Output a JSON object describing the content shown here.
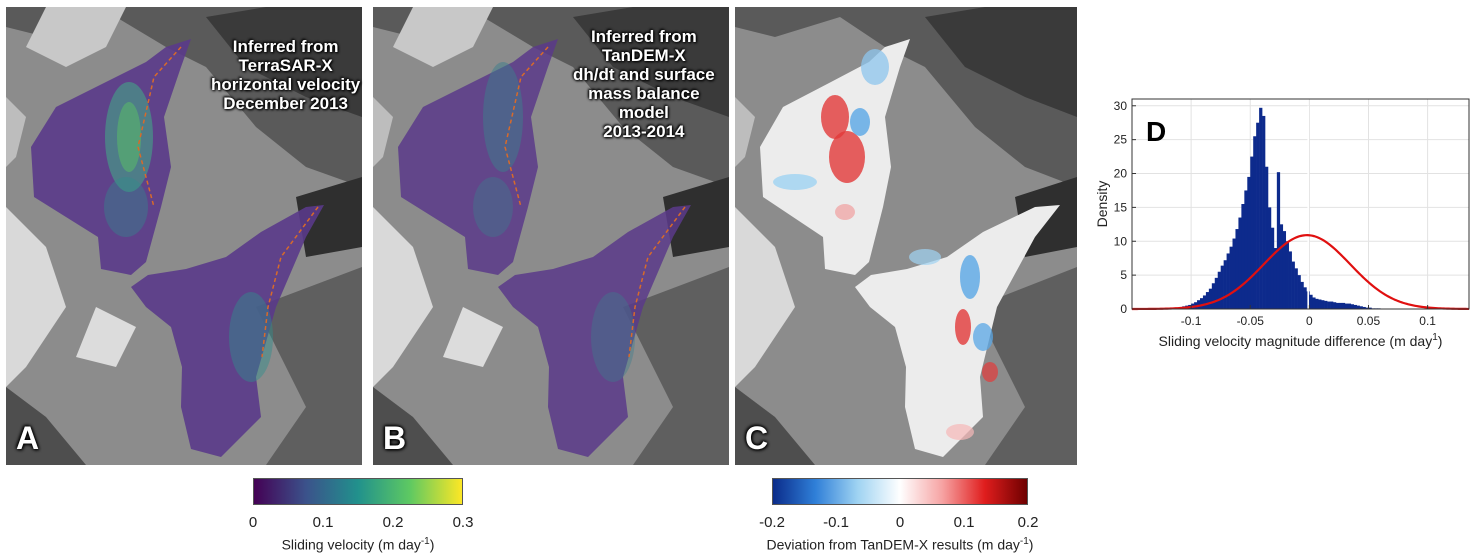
{
  "panels": {
    "a": {
      "letter": "A",
      "title_lines": [
        "Inferred from",
        "TerraSAR-X",
        "horizontal velocity",
        "December 2013"
      ]
    },
    "b": {
      "letter": "B",
      "title_lines": [
        "Inferred from",
        "TanDEM-X",
        "dh/dt and surface",
        "mass balance",
        "model",
        "2013-2014"
      ]
    },
    "c": {
      "letter": "C"
    }
  },
  "colorbars": {
    "velocity": {
      "ticks": [
        "0",
        "0.1",
        "0.2",
        "0.3"
      ],
      "label": "Sliding velocity (m day",
      "label_sup": "-1",
      "label_end": ")",
      "colors": [
        "#440154",
        "#3b528b",
        "#21918c",
        "#5ec962",
        "#fde725"
      ]
    },
    "deviation": {
      "ticks": [
        "-0.2",
        "-0.1",
        "0",
        "0.1",
        "0.2"
      ],
      "label": "Deviation from TanDEM-X results (m day",
      "label_sup": "-1",
      "label_end": ")",
      "colors": [
        "#0b2c8a",
        "#2f7fd8",
        "#9fd3f2",
        "#ffffff",
        "#f6a3a3",
        "#e01d1d",
        "#6e0000"
      ]
    }
  },
  "chart_data": {
    "type": "histogram",
    "panel_letter": "D",
    "xlabel": "Sliding velocity magnitude difference (m day",
    "xlabel_sup": "1",
    "xlabel_end": ")",
    "ylabel": "Density",
    "xlim": [
      -0.15,
      0.135
    ],
    "ylim": [
      0,
      31
    ],
    "xticks": [
      -0.1,
      -0.05,
      0,
      0.05,
      0.1
    ],
    "xtick_labels": [
      "-0.1",
      "-0.05",
      "0",
      "0.05",
      "0.1"
    ],
    "yticks": [
      0,
      5,
      10,
      15,
      20,
      25,
      30
    ],
    "ytick_labels": [
      "0",
      "5",
      "10",
      "15",
      "20",
      "25",
      "30"
    ],
    "grid": true,
    "bar_color": "#0d2a8c",
    "fit_color": "#e01010",
    "bins": {
      "start": -0.15,
      "width": 0.0025,
      "densities": [
        0,
        0,
        0,
        0,
        0,
        0,
        0,
        0,
        0,
        0,
        0,
        0,
        0.1,
        0.1,
        0.2,
        0.2,
        0.3,
        0.4,
        0.5,
        0.6,
        0.8,
        1.0,
        1.3,
        1.6,
        2.0,
        2.5,
        3.0,
        3.8,
        4.6,
        5.5,
        6.4,
        7.2,
        8.2,
        9.2,
        10.4,
        11.8,
        13.5,
        15.5,
        17.5,
        19.5,
        22.5,
        25.5,
        27.5,
        29.7,
        28.5,
        21.0,
        15.0,
        12.0,
        9.0,
        20.2,
        12.5,
        11.5,
        10.0,
        8.5,
        7.0,
        6.0,
        5.0,
        4.0,
        3.2,
        2.6,
        2.1,
        1.7,
        1.5,
        1.4,
        1.3,
        1.2,
        1.1,
        1.1,
        1.0,
        0.9,
        0.9,
        0.9,
        0.8,
        0.8,
        0.7,
        0.6,
        0.5,
        0.4,
        0.3,
        0.2,
        0.2,
        0.1,
        0.1,
        0.1,
        0,
        0,
        0,
        0,
        0,
        0,
        0,
        0,
        0,
        0,
        0,
        0,
        0,
        0,
        0,
        0,
        0,
        0,
        0,
        0,
        0,
        0,
        0,
        0,
        0,
        0,
        0,
        0,
        0,
        0
      ]
    },
    "gaps": [
      {
        "x": -0.001,
        "from": 0,
        "to": 30
      }
    ],
    "fit": {
      "kind": "normal",
      "mean": -0.002,
      "sd": 0.0365,
      "peak": 10.9
    }
  }
}
